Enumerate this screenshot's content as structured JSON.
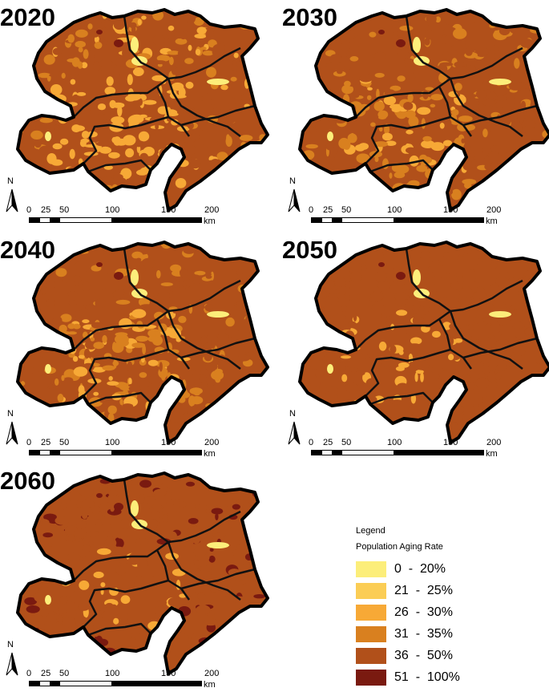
{
  "panels": [
    {
      "year": "2020",
      "fill_scheme": [
        1,
        4,
        2,
        3
      ]
    },
    {
      "year": "2030",
      "fill_scheme": [
        1,
        4,
        3,
        4
      ]
    },
    {
      "year": "2040",
      "fill_scheme": [
        1,
        4,
        3,
        4
      ]
    },
    {
      "year": "2050",
      "fill_scheme": [
        1,
        4,
        4,
        4
      ]
    },
    {
      "year": "2060",
      "fill_scheme": [
        1,
        4,
        4,
        5
      ]
    }
  ],
  "north_label": "N",
  "scale": {
    "ticks": [
      "0",
      "25",
      "50",
      "100",
      "150",
      "200"
    ],
    "unit": "km"
  },
  "legend": {
    "title": "Legend",
    "subtitle": "Population Aging Rate",
    "items": [
      {
        "label": "0  -  20%",
        "color": "#fcee7a"
      },
      {
        "label": "21  -  25%",
        "color": "#fbcd55"
      },
      {
        "label": "26  -  30%",
        "color": "#f7a936"
      },
      {
        "label": "31  -  35%",
        "color": "#d9801f"
      },
      {
        "label": "36  -  50%",
        "color": "#b1501a"
      },
      {
        "label": "51  -  100%",
        "color": "#7a1a10"
      }
    ]
  }
}
